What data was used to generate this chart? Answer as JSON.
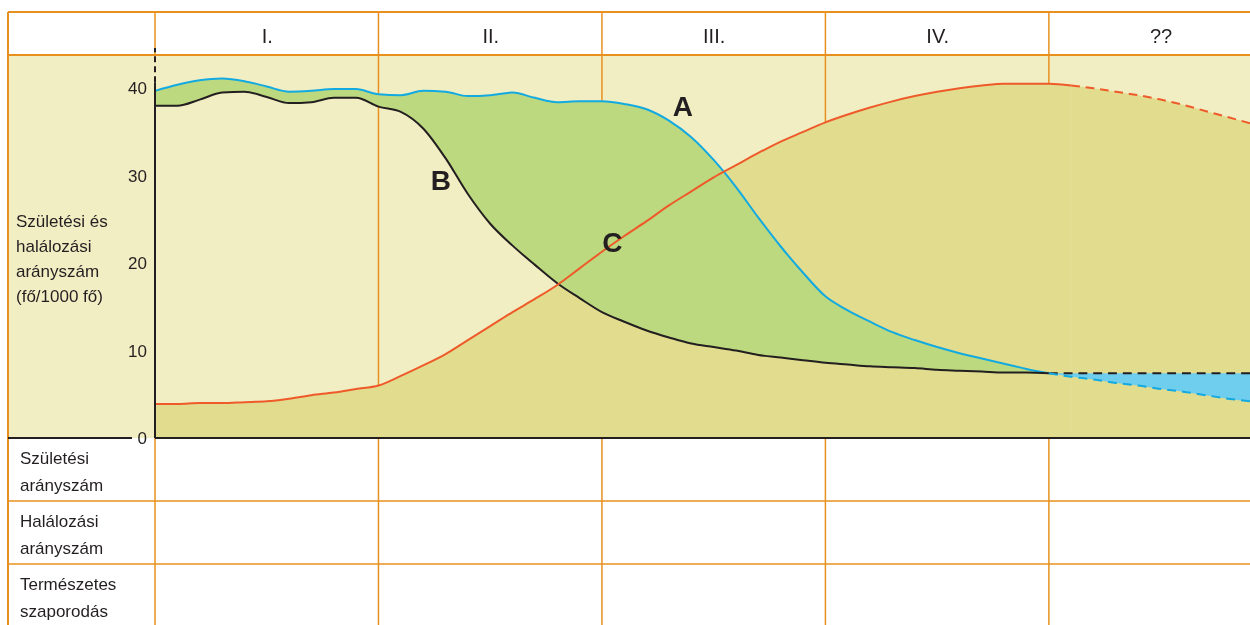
{
  "chart_data": {
    "type": "line",
    "ylabel": "Születési és halálozási arányszám (fő/1000 fő)",
    "ylim": [
      0,
      43.8
    ],
    "yticks": [
      0,
      10,
      20,
      30,
      40
    ],
    "grid": "x",
    "categories": [
      null,
      null,
      null,
      null,
      null,
      "I.",
      null,
      null,
      null,
      null,
      null,
      null,
      null,
      null,
      null,
      "II.",
      null,
      null,
      null,
      null,
      null,
      null,
      null,
      null,
      null,
      "III.",
      null,
      null,
      null,
      null,
      null,
      null,
      null,
      null,
      null,
      "IV.",
      null,
      null,
      null,
      null,
      null,
      null,
      null,
      null,
      null,
      "??",
      null,
      null,
      null,
      null
    ],
    "annotations": [
      "Születési arányszám",
      "Halálozási arányszám",
      "Természetes szaporodás"
    ],
    "series": [
      {
        "name": "A",
        "color": "#13a9e1",
        "values": [
          39.7,
          40.4,
          40.9,
          41.1,
          40.8,
          40.2,
          39.6,
          39.7,
          39.9,
          39.9,
          39.3,
          39.2,
          39.7,
          39.6,
          39.1,
          39.2,
          39.5,
          38.9,
          38.4,
          38.5,
          38.5,
          38.2,
          37.6,
          36.3,
          34.4,
          31.8,
          28.7,
          25.2,
          21.9,
          18.9,
          16.2,
          14.6,
          13.3,
          12.1,
          11.2,
          10.4,
          9.7,
          9.1,
          8.5,
          7.9,
          7.4,
          null,
          null,
          null,
          null,
          null,
          null,
          null,
          null,
          null
        ],
        "lower": [
          38.0,
          38.0,
          38.7,
          39.5,
          39.6,
          39.0,
          38.3,
          38.4,
          38.9,
          38.9,
          37.9,
          37.3,
          35.4,
          32.0,
          27.9,
          24.5,
          22.0,
          19.8,
          17.7,
          16.0,
          14.4,
          13.3,
          12.3,
          11.5,
          10.8,
          10.4,
          10.0,
          9.5,
          9.2,
          8.9,
          8.6,
          8.4,
          8.2,
          8.1,
          8.0,
          7.8,
          7.7,
          7.6,
          7.5,
          7.5,
          7.4,
          null,
          null,
          null,
          null,
          null,
          null,
          null,
          null,
          null
        ],
        "upper": [
          39.7,
          40.4,
          40.9,
          41.1,
          40.8,
          40.2,
          39.6,
          39.7,
          39.9,
          39.9,
          39.3,
          39.2,
          39.7,
          39.6,
          39.1,
          39.2,
          39.5,
          38.9,
          38.4,
          38.5,
          38.5,
          38.2,
          37.6,
          36.3,
          34.4,
          31.8,
          28.7,
          25.2,
          21.9,
          18.9,
          16.2,
          14.6,
          13.3,
          12.1,
          11.2,
          10.4,
          9.7,
          9.1,
          8.5,
          7.9,
          7.4,
          null,
          null,
          null,
          null,
          null,
          null,
          null,
          null,
          null
        ]
      },
      {
        "color": "#13a9e1",
        "line_style": "dashed",
        "values": [
          null,
          null,
          null,
          null,
          null,
          null,
          null,
          null,
          null,
          null,
          null,
          null,
          null,
          null,
          null,
          null,
          null,
          null,
          null,
          null,
          null,
          null,
          null,
          null,
          null,
          null,
          null,
          null,
          null,
          null,
          null,
          null,
          null,
          null,
          null,
          null,
          null,
          null,
          null,
          null,
          7.4,
          7.0,
          6.7,
          6.3,
          6.0,
          5.6,
          5.3,
          4.9,
          4.5,
          4.2
        ],
        "lower": [
          null,
          null,
          null,
          null,
          null,
          null,
          null,
          null,
          null,
          null,
          null,
          null,
          null,
          null,
          null,
          null,
          null,
          null,
          null,
          null,
          null,
          null,
          null,
          null,
          null,
          null,
          null,
          null,
          null,
          null,
          null,
          null,
          null,
          null,
          null,
          null,
          null,
          null,
          null,
          null,
          7.4,
          7.0,
          6.7,
          6.3,
          6.0,
          5.6,
          5.3,
          4.9,
          4.5,
          4.2
        ],
        "upper": [
          null,
          null,
          null,
          null,
          null,
          null,
          null,
          null,
          null,
          null,
          null,
          null,
          null,
          null,
          null,
          null,
          null,
          null,
          null,
          null,
          null,
          null,
          null,
          null,
          null,
          null,
          null,
          null,
          null,
          null,
          null,
          null,
          null,
          null,
          null,
          null,
          null,
          null,
          null,
          null,
          7.4,
          7.4,
          7.4,
          7.4,
          7.4,
          7.4,
          7.4,
          7.4,
          7.4,
          7.4
        ]
      },
      {
        "name": "B",
        "color": "#231f20",
        "values": [
          38.0,
          38.0,
          38.7,
          39.5,
          39.6,
          39.0,
          38.3,
          38.4,
          38.9,
          38.9,
          37.9,
          37.3,
          35.4,
          32.0,
          27.9,
          24.5,
          22.0,
          19.8,
          17.7,
          16.0,
          14.4,
          13.3,
          12.3,
          11.5,
          10.8,
          10.4,
          10.0,
          9.5,
          9.2,
          8.9,
          8.6,
          8.4,
          8.2,
          8.1,
          8.0,
          7.8,
          7.7,
          7.6,
          7.5,
          7.5,
          7.4,
          null,
          null,
          null,
          null,
          null,
          null,
          null,
          null,
          null
        ]
      },
      {
        "color": "#231f20",
        "line_style": "dashed",
        "values": [
          null,
          null,
          null,
          null,
          null,
          null,
          null,
          null,
          null,
          null,
          null,
          null,
          null,
          null,
          null,
          null,
          null,
          null,
          null,
          null,
          null,
          null,
          null,
          null,
          null,
          null,
          null,
          null,
          null,
          null,
          null,
          null,
          null,
          null,
          null,
          null,
          null,
          null,
          null,
          null,
          7.4,
          7.4,
          7.4,
          7.4,
          7.4,
          7.4,
          7.4,
          7.4,
          7.4,
          7.4
        ]
      },
      {
        "name": "C",
        "color": "#ee5a2a",
        "values": [
          3.9,
          3.9,
          4.0,
          4.0,
          4.1,
          4.2,
          4.5,
          4.9,
          5.2,
          5.6,
          6.0,
          7.1,
          8.3,
          9.6,
          11.2,
          12.8,
          14.4,
          15.9,
          17.5,
          19.4,
          21.3,
          23.1,
          24.8,
          26.6,
          28.2,
          29.8,
          31.2,
          32.6,
          33.9,
          35.0,
          36.1,
          37.0,
          37.8,
          38.5,
          39.1,
          39.6,
          40.0,
          40.3,
          40.5,
          40.5,
          40.5,
          40.3,
          null,
          null,
          null,
          null,
          null,
          null,
          null,
          null
        ],
        "lower": [
          0,
          0,
          0,
          0,
          0,
          0,
          0,
          0,
          0,
          0,
          0,
          0,
          0,
          0,
          0,
          0,
          0,
          0,
          0,
          0,
          0,
          0,
          0,
          0,
          0,
          0,
          0,
          0,
          0,
          0,
          0,
          0,
          0,
          0,
          0,
          0,
          0,
          0,
          0,
          0,
          0,
          0,
          null,
          null,
          null,
          null,
          null,
          null,
          null,
          null
        ],
        "upper": [
          3.9,
          3.9,
          4.0,
          4.0,
          4.1,
          4.2,
          4.5,
          4.9,
          5.2,
          5.6,
          6.0,
          7.1,
          8.3,
          9.6,
          11.2,
          12.8,
          14.4,
          15.9,
          17.5,
          19.4,
          21.3,
          23.1,
          24.8,
          26.6,
          28.2,
          29.8,
          31.2,
          32.6,
          33.9,
          35.0,
          36.1,
          37.0,
          37.8,
          38.5,
          39.1,
          39.6,
          40.0,
          40.3,
          40.5,
          40.5,
          40.5,
          40.3,
          null,
          null,
          null,
          null,
          null,
          null,
          null,
          null
        ]
      },
      {
        "color": "#ee5a2a",
        "line_style": "dashed",
        "values": [
          null,
          null,
          null,
          null,
          null,
          null,
          null,
          null,
          null,
          null,
          null,
          null,
          null,
          null,
          null,
          null,
          null,
          null,
          null,
          null,
          null,
          null,
          null,
          null,
          null,
          null,
          null,
          null,
          null,
          null,
          null,
          null,
          null,
          null,
          null,
          null,
          null,
          null,
          null,
          null,
          null,
          40.3,
          40.0,
          39.6,
          39.2,
          38.7,
          38.1,
          37.4,
          36.7,
          36.0
        ],
        "lower": [
          null,
          null,
          null,
          null,
          null,
          null,
          null,
          null,
          null,
          null,
          null,
          null,
          null,
          null,
          null,
          null,
          null,
          null,
          null,
          null,
          null,
          null,
          null,
          null,
          null,
          null,
          null,
          null,
          null,
          null,
          null,
          null,
          null,
          null,
          null,
          null,
          null,
          null,
          null,
          null,
          null,
          0,
          0,
          0,
          0,
          0,
          0,
          0,
          0,
          0
        ],
        "upper": [
          null,
          null,
          null,
          null,
          null,
          null,
          null,
          null,
          null,
          null,
          null,
          null,
          null,
          null,
          null,
          null,
          null,
          null,
          null,
          null,
          null,
          null,
          null,
          null,
          null,
          null,
          null,
          null,
          null,
          null,
          null,
          null,
          null,
          null,
          null,
          null,
          null,
          null,
          null,
          null,
          null,
          40.3,
          40.0,
          39.6,
          39.2,
          38.7,
          38.1,
          37.4,
          36.7,
          36.0
        ]
      }
    ]
  }
}
